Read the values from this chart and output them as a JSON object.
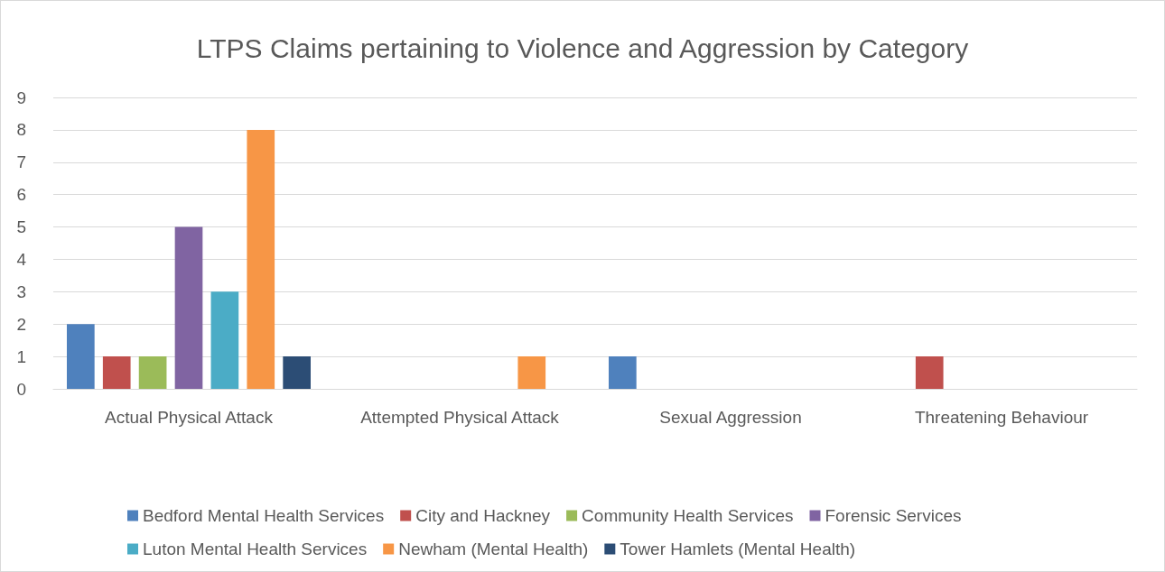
{
  "chart_data": {
    "type": "bar",
    "title": "LTPS Claims pertaining to Violence and Aggression by Category",
    "categories": [
      "Actual Physical Attack",
      "Attempted Physical Attack",
      "Sexual Aggression",
      "Threatening Behaviour"
    ],
    "series": [
      {
        "name": "Bedford Mental Health Services",
        "color": "#4f81bd",
        "values": [
          2,
          0,
          1,
          0
        ]
      },
      {
        "name": "City and Hackney",
        "color": "#c0504d",
        "values": [
          1,
          0,
          0,
          1
        ]
      },
      {
        "name": "Community Health Services",
        "color": "#9bbb59",
        "values": [
          1,
          0,
          0,
          0
        ]
      },
      {
        "name": "Forensic Services",
        "color": "#8064a2",
        "values": [
          5,
          0,
          0,
          0
        ]
      },
      {
        "name": "Luton Mental Health Services",
        "color": "#4bacc6",
        "values": [
          3,
          0,
          0,
          0
        ]
      },
      {
        "name": "Newham (Mental Health)",
        "color": "#f79646",
        "values": [
          8,
          1,
          0,
          0
        ]
      },
      {
        "name": "Tower Hamlets (Mental Health)",
        "color": "#2c4d75",
        "values": [
          1,
          0,
          0,
          0
        ]
      }
    ],
    "ylim": [
      0,
      9
    ],
    "yticks": [
      0,
      1,
      2,
      3,
      4,
      5,
      6,
      7,
      8,
      9
    ],
    "grid": "y",
    "legend": "bottom"
  }
}
